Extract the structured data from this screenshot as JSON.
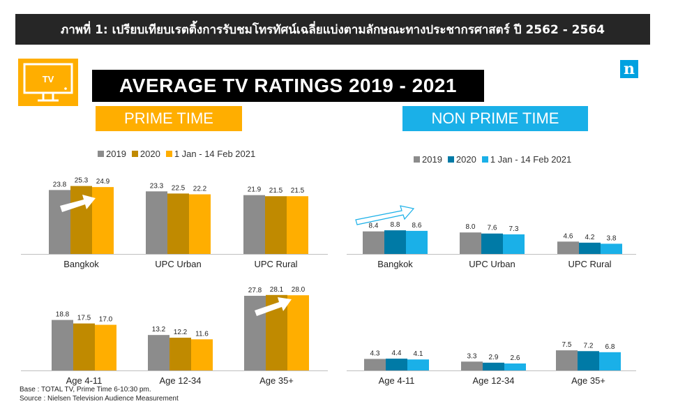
{
  "banner_title": "ภาพที่ 1: เปรียบเทียบเรตติ้งการรับชมโทรทัศน์เฉลี่ยแบ่งตามลักษณะทางประชากรศาสตร์ ปี 2562 - 2564",
  "tv_icon_label": "TV",
  "logo_letter": "n",
  "main_title": "AVERAGE TV RATINGS 2019 - 2021",
  "prime_header": "PRIME TIME",
  "nonprime_header": "NON PRIME TIME",
  "colors": {
    "gray": "#8c8c8c",
    "prime_2020": "#c08a00",
    "prime_2021": "#ffae00",
    "nonprime_2020": "#007aa6",
    "nonprime_2021": "#1ab0e8",
    "banner_bg": "#262626"
  },
  "legend_prime": [
    "2019",
    "2020",
    "1 Jan - 14 Feb 2021"
  ],
  "legend_nonprime": [
    "2019",
    "2020",
    "1 Jan - 14 Feb 2021"
  ],
  "footnotes": {
    "base": "Base : TOTAL TV, Prime Time 6-10:30 pm.",
    "source": "Source : Nielsen Television Audience Measurement"
  },
  "chart_data": [
    {
      "type": "bar",
      "title": "",
      "categories": [
        "Bangkok",
        "UPC Urban",
        "UPC Rural"
      ],
      "series": [
        {
          "name": "2019",
          "values": [
            23.8,
            23.3,
            21.9
          ]
        },
        {
          "name": "2020",
          "values": [
            25.3,
            22.5,
            21.5
          ]
        },
        {
          "name": "1 Jan - 14 Feb 2021",
          "values": [
            24.9,
            22.2,
            21.5
          ]
        }
      ]
    },
    {
      "type": "bar",
      "title": "",
      "categories": [
        "Age 4-11",
        "Age 12-34",
        "Age 35+"
      ],
      "series": [
        {
          "name": "2019",
          "values": [
            18.8,
            13.2,
            27.8
          ]
        },
        {
          "name": "2020",
          "values": [
            17.5,
            12.2,
            28.1
          ]
        },
        {
          "name": "1 Jan - 14 Feb 2021",
          "values": [
            17.0,
            11.6,
            28.0
          ]
        }
      ]
    },
    {
      "type": "bar",
      "title": "",
      "categories": [
        "Bangkok",
        "UPC Urban",
        "UPC Rural"
      ],
      "series": [
        {
          "name": "2019",
          "values": [
            8.4,
            8.0,
            4.6
          ]
        },
        {
          "name": "2020",
          "values": [
            8.8,
            7.6,
            4.2
          ]
        },
        {
          "name": "1 Jan - 14 Feb 2021",
          "values": [
            8.6,
            7.3,
            3.8
          ]
        }
      ]
    },
    {
      "type": "bar",
      "title": "",
      "categories": [
        "Age 4-11",
        "Age 12-34",
        "Age 35+"
      ],
      "series": [
        {
          "name": "2019",
          "values": [
            4.3,
            3.3,
            7.5
          ]
        },
        {
          "name": "2020",
          "values": [
            4.4,
            2.9,
            7.2
          ]
        },
        {
          "name": "1 Jan - 14 Feb 2021",
          "values": [
            4.1,
            2.6,
            6.8
          ]
        }
      ]
    }
  ]
}
